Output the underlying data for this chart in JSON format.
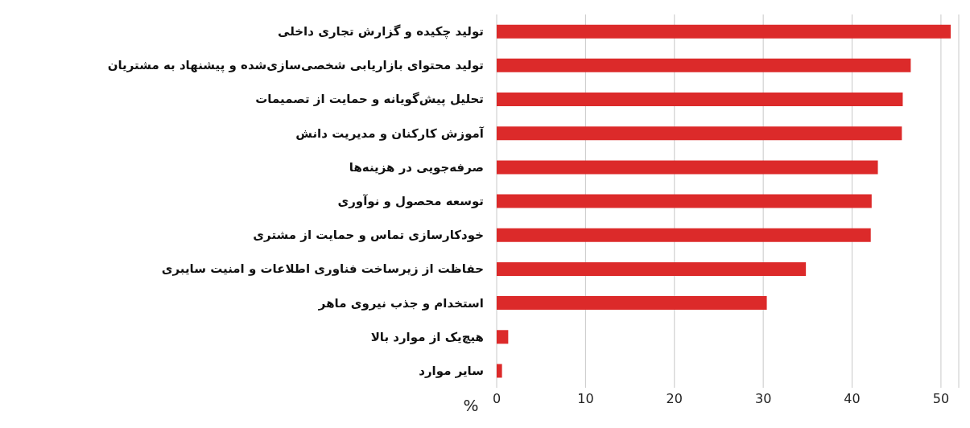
{
  "chart_data": {
    "type": "bar",
    "orientation": "horizontal",
    "xlabel": "%",
    "categories": [
      "تولید چکیده و گزارش تجاری داخلی",
      "تولید محتوای بازاریابی شخصی‌سازی‌شده و پیشنهاد به مشتریان",
      "تحلیل پیش‌گویانه و حمایت از تصمیمات",
      "آموزش کارکنان و مدیریت دانش",
      "صرفه‌جویی در هزینه‌ها",
      "توسعه محصول و نوآوری",
      "خودکارسازی تماس و حمایت از مشتری",
      "حفاظت از زیرساخت فناوری اطلاعات و امنیت سایبری",
      "استخدام و جذب نیروی ماهر",
      "هیچ‌یک از موارد بالا",
      "سایر موارد"
    ],
    "values": [
      51.1,
      46.6,
      45.7,
      45.6,
      42.9,
      42.2,
      42.1,
      34.8,
      30.4,
      1.3,
      0.6
    ],
    "color": "#dc2a2a",
    "xlim": [
      0,
      52
    ],
    "xticks": [
      0,
      10,
      20,
      30,
      40,
      50
    ],
    "grid": "x",
    "legend": false
  }
}
